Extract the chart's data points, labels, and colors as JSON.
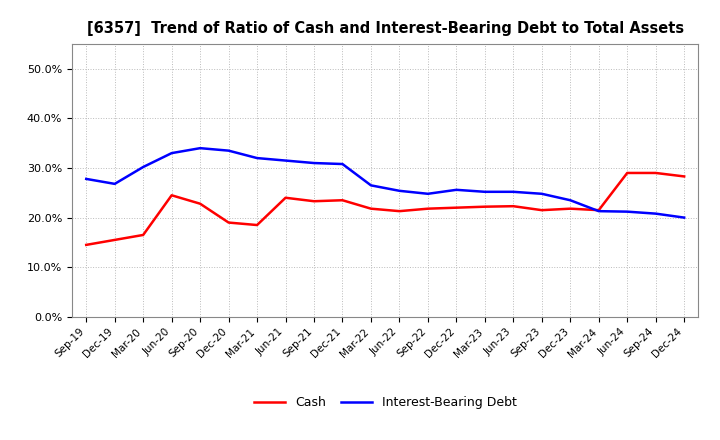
{
  "title": "[6357]  Trend of Ratio of Cash and Interest-Bearing Debt to Total Assets",
  "x_labels": [
    "Sep-19",
    "Dec-19",
    "Mar-20",
    "Jun-20",
    "Sep-20",
    "Dec-20",
    "Mar-21",
    "Jun-21",
    "Sep-21",
    "Dec-21",
    "Mar-22",
    "Jun-22",
    "Sep-22",
    "Dec-22",
    "Mar-23",
    "Jun-23",
    "Sep-23",
    "Dec-23",
    "Mar-24",
    "Jun-24",
    "Sep-24",
    "Dec-24"
  ],
  "cash": [
    0.145,
    0.155,
    0.165,
    0.245,
    0.228,
    0.19,
    0.185,
    0.24,
    0.233,
    0.235,
    0.218,
    0.213,
    0.218,
    0.22,
    0.222,
    0.223,
    0.215,
    0.218,
    0.215,
    0.29,
    0.29,
    0.283
  ],
  "interest_bearing_debt": [
    0.278,
    0.268,
    0.302,
    0.33,
    0.34,
    0.335,
    0.32,
    0.315,
    0.31,
    0.308,
    0.265,
    0.254,
    0.248,
    0.256,
    0.252,
    0.252,
    0.248,
    0.235,
    0.213,
    0.212,
    0.208,
    0.2
  ],
  "cash_color": "#ff0000",
  "debt_color": "#0000ff",
  "background_color": "#ffffff",
  "plot_bg_color": "#ffffff",
  "ylim": [
    0.0,
    0.55
  ],
  "yticks": [
    0.0,
    0.1,
    0.2,
    0.3,
    0.4,
    0.5
  ],
  "grid_color": "#bbbbbb",
  "legend_cash": "Cash",
  "legend_debt": "Interest-Bearing Debt",
  "line_width": 1.8
}
